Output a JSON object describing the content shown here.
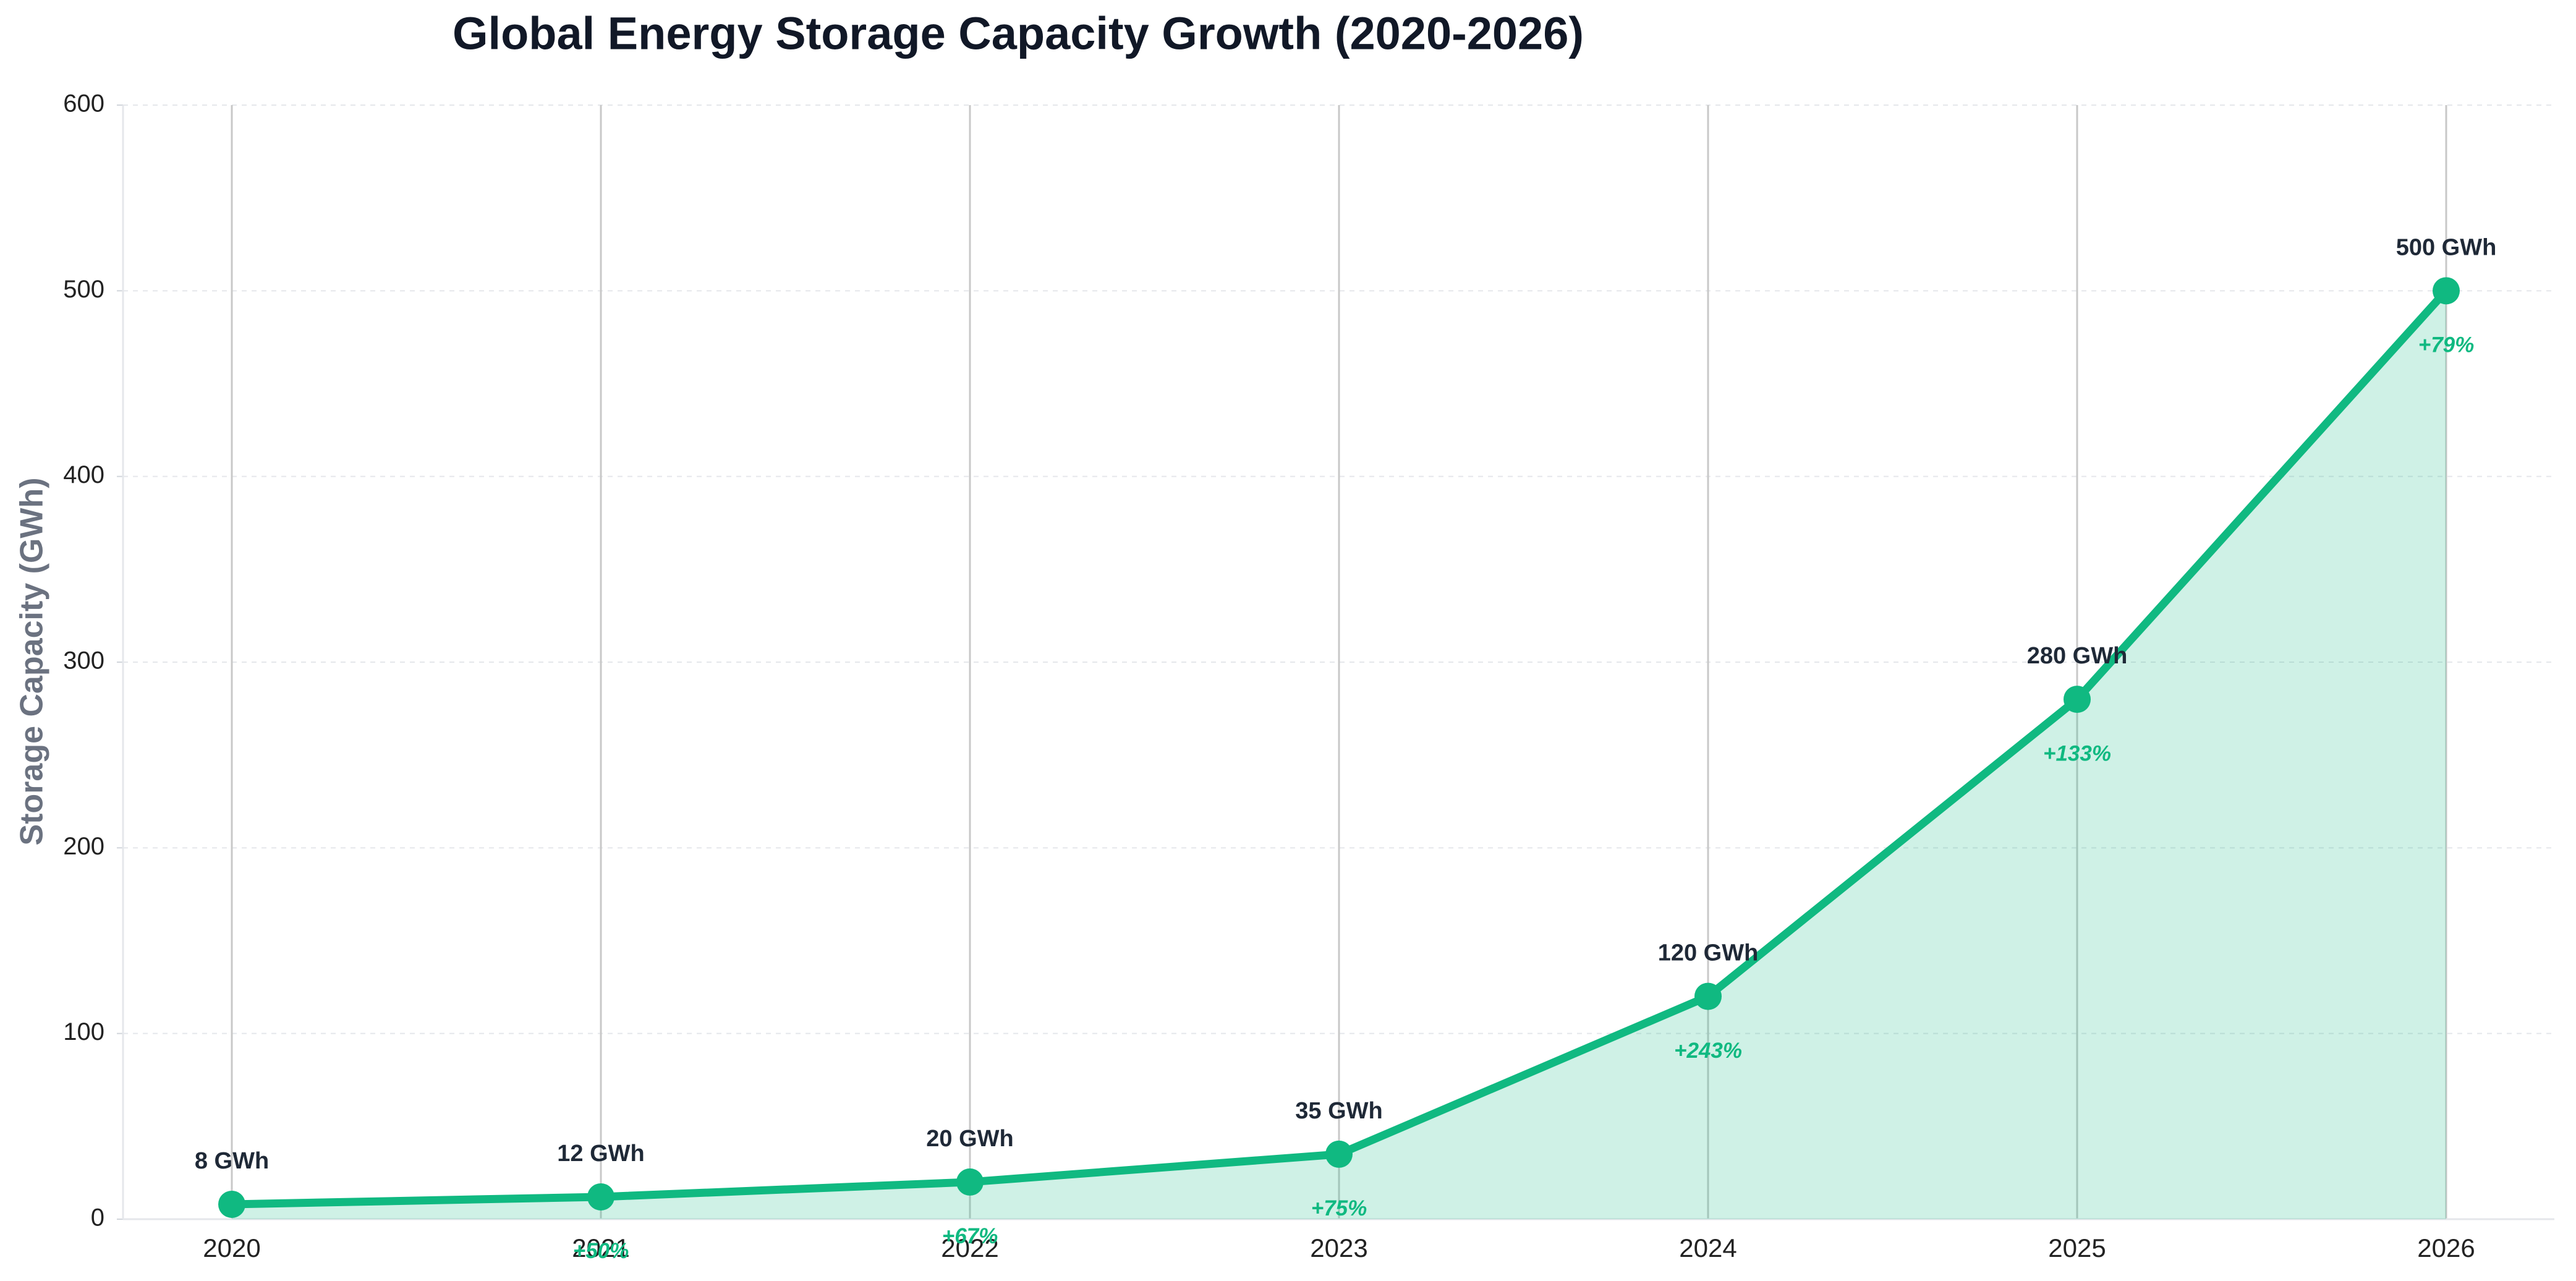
{
  "chart_data": {
    "type": "line",
    "title": "Global Energy Storage Capacity Growth (2020-2026)",
    "y_label": "Storage Capacity (GWh)",
    "categories": [
      "2020",
      "2021",
      "2022",
      "2023",
      "2024",
      "2025",
      "2026"
    ],
    "values": [
      8,
      12,
      20,
      35,
      120,
      280,
      500
    ],
    "value_labels": [
      "8 GWh",
      "12 GWh",
      "20 GWh",
      "35 GWh",
      "120 GWh",
      "280 GWh",
      "500 GWh"
    ],
    "growth_labels": [
      null,
      "+50%",
      "+67%",
      "+75%",
      "+243%",
      "+133%",
      "+79%"
    ],
    "color": "#10b981",
    "ylim": [
      0,
      600
    ],
    "yticks": [
      0,
      100,
      200,
      300,
      400,
      500,
      600
    ],
    "grid": true,
    "fill": true
  }
}
